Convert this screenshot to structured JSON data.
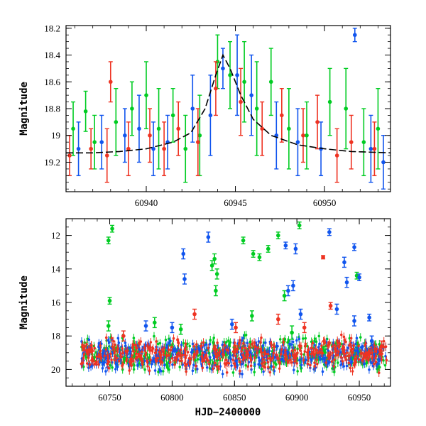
{
  "chart_data": [
    {
      "type": "scatter",
      "title": "",
      "xlabel": "",
      "ylabel": "Magnitude",
      "xlim": [
        60935.5,
        60953.7
      ],
      "ylim": [
        19.42,
        18.18
      ],
      "y_inverted": true,
      "x_ticks": [
        60940,
        60945,
        60950
      ],
      "x_tick_labels": [
        "60940",
        "60945",
        "60950"
      ],
      "y_ticks": [
        18.2,
        18.4,
        18.6,
        18.8,
        19,
        19.2
      ],
      "y_tick_labels": [
        "18.2",
        "18.4",
        "18.6",
        "18.8",
        "19",
        "19.2"
      ],
      "grid": false,
      "series": [
        {
          "color": "#00cc22",
          "marker": "circle-with-errorbar",
          "points": [
            {
              "x": 60935.9,
              "y": 18.95,
              "err": 0.2
            },
            {
              "x": 60936.6,
              "y": 18.82,
              "err": 0.15
            },
            {
              "x": 60937.1,
              "y": 19.05,
              "err": 0.2
            },
            {
              "x": 60938.3,
              "y": 18.9,
              "err": 0.25
            },
            {
              "x": 60939.2,
              "y": 18.8,
              "err": 0.2
            },
            {
              "x": 60940.0,
              "y": 18.7,
              "err": 0.25
            },
            {
              "x": 60940.7,
              "y": 18.95,
              "err": 0.3
            },
            {
              "x": 60941.5,
              "y": 18.85,
              "err": 0.2
            },
            {
              "x": 60942.2,
              "y": 19.1,
              "err": 0.25
            },
            {
              "x": 60943.0,
              "y": 19.0,
              "err": 0.3
            },
            {
              "x": 60944.0,
              "y": 18.45,
              "err": 0.2
            },
            {
              "x": 60944.7,
              "y": 18.55,
              "err": 0.25
            },
            {
              "x": 60945.5,
              "y": 18.6,
              "err": 0.3
            },
            {
              "x": 60946.2,
              "y": 18.8,
              "err": 0.35
            },
            {
              "x": 60947.0,
              "y": 18.6,
              "err": 0.25
            },
            {
              "x": 60948.0,
              "y": 18.95,
              "err": 0.3
            },
            {
              "x": 60949.0,
              "y": 19.0,
              "err": 0.25
            },
            {
              "x": 60950.3,
              "y": 18.75,
              "err": 0.25
            },
            {
              "x": 60951.2,
              "y": 18.8,
              "err": 0.3
            },
            {
              "x": 60952.2,
              "y": 19.05,
              "err": 0.25
            },
            {
              "x": 60953.0,
              "y": 18.95,
              "err": 0.3
            }
          ]
        },
        {
          "color": "#1155ee",
          "marker": "circle-with-errorbar",
          "points": [
            {
              "x": 60936.2,
              "y": 19.1,
              "err": 0.2
            },
            {
              "x": 60937.5,
              "y": 19.05,
              "err": 0.2
            },
            {
              "x": 60938.8,
              "y": 19.0,
              "err": 0.2
            },
            {
              "x": 60939.6,
              "y": 18.95,
              "err": 0.25
            },
            {
              "x": 60940.4,
              "y": 19.1,
              "err": 0.2
            },
            {
              "x": 60941.2,
              "y": 19.05,
              "err": 0.2
            },
            {
              "x": 60942.6,
              "y": 18.8,
              "err": 0.25
            },
            {
              "x": 60943.6,
              "y": 18.85,
              "err": 0.3
            },
            {
              "x": 60944.3,
              "y": 18.5,
              "err": 0.15
            },
            {
              "x": 60945.1,
              "y": 18.55,
              "err": 0.3
            },
            {
              "x": 60945.9,
              "y": 18.7,
              "err": 0.3
            },
            {
              "x": 60947.3,
              "y": 19.0,
              "err": 0.25
            },
            {
              "x": 60948.5,
              "y": 19.05,
              "err": 0.25
            },
            {
              "x": 60949.8,
              "y": 19.1,
              "err": 0.2
            },
            {
              "x": 60951.7,
              "y": 18.25,
              "err": 0.05
            },
            {
              "x": 60952.6,
              "y": 19.1,
              "err": 0.25
            },
            {
              "x": 60953.3,
              "y": 19.2,
              "err": 0.2
            }
          ]
        },
        {
          "color": "#ee3322",
          "marker": "circle-with-errorbar",
          "points": [
            {
              "x": 60935.7,
              "y": 19.15,
              "err": 0.15
            },
            {
              "x": 60936.9,
              "y": 19.1,
              "err": 0.15
            },
            {
              "x": 60937.8,
              "y": 19.15,
              "err": 0.2
            },
            {
              "x": 60938.0,
              "y": 18.6,
              "err": 0.15
            },
            {
              "x": 60939.0,
              "y": 19.1,
              "err": 0.2
            },
            {
              "x": 60940.2,
              "y": 19.0,
              "err": 0.2
            },
            {
              "x": 60941.0,
              "y": 19.1,
              "err": 0.2
            },
            {
              "x": 60941.8,
              "y": 18.95,
              "err": 0.2
            },
            {
              "x": 60942.9,
              "y": 19.05,
              "err": 0.25
            },
            {
              "x": 60943.9,
              "y": 18.65,
              "err": 0.2
            },
            {
              "x": 60945.3,
              "y": 18.75,
              "err": 0.25
            },
            {
              "x": 60946.5,
              "y": 18.95,
              "err": 0.2
            },
            {
              "x": 60947.6,
              "y": 18.85,
              "err": 0.2
            },
            {
              "x": 60948.8,
              "y": 19.0,
              "err": 0.2
            },
            {
              "x": 60949.6,
              "y": 18.9,
              "err": 0.2
            },
            {
              "x": 60950.7,
              "y": 19.15,
              "err": 0.2
            },
            {
              "x": 60951.5,
              "y": 19.05,
              "err": 0.2
            },
            {
              "x": 60952.8,
              "y": 19.1,
              "err": 0.2
            }
          ]
        },
        {
          "color": "#000000",
          "style": "dashed-line",
          "points": [
            {
              "x": 60935.5,
              "y": 19.13
            },
            {
              "x": 60937.0,
              "y": 19.13
            },
            {
              "x": 60938.5,
              "y": 19.12
            },
            {
              "x": 60940.0,
              "y": 19.1
            },
            {
              "x": 60941.5,
              "y": 19.05
            },
            {
              "x": 60942.5,
              "y": 18.98
            },
            {
              "x": 60943.3,
              "y": 18.8
            },
            {
              "x": 60943.9,
              "y": 18.55
            },
            {
              "x": 60944.3,
              "y": 18.4
            },
            {
              "x": 60944.7,
              "y": 18.5
            },
            {
              "x": 60945.3,
              "y": 18.7
            },
            {
              "x": 60946.0,
              "y": 18.88
            },
            {
              "x": 60947.0,
              "y": 19.0
            },
            {
              "x": 60948.5,
              "y": 19.07
            },
            {
              "x": 60950.0,
              "y": 19.1
            },
            {
              "x": 60951.5,
              "y": 19.12
            },
            {
              "x": 60953.7,
              "y": 19.13
            }
          ]
        }
      ]
    },
    {
      "type": "scatter",
      "title": "",
      "xlabel": "HJD−2400000",
      "ylabel": "Magnitude",
      "xlim": [
        60715,
        60975
      ],
      "ylim": [
        21.0,
        11.0
      ],
      "y_inverted": true,
      "x_ticks": [
        60750,
        60800,
        60850,
        60900,
        60950
      ],
      "x_tick_labels": [
        "60750",
        "60800",
        "60850",
        "60900",
        "60950"
      ],
      "y_ticks": [
        12,
        14,
        16,
        18,
        20
      ],
      "y_tick_labels": [
        "12",
        "14",
        "16",
        "18",
        "20"
      ],
      "grid": false,
      "baseline_band": {
        "x_start": 60727,
        "x_end": 60972,
        "center": 19.1,
        "spread": 0.9
      },
      "series": [
        {
          "color": "#00cc22",
          "marker": "circle-with-errorbar",
          "points": [
            {
              "x": 60749,
              "y": 12.3,
              "err": 0.2
            },
            {
              "x": 60752,
              "y": 11.6,
              "err": 0.2
            },
            {
              "x": 60750,
              "y": 15.9,
              "err": 0.2
            },
            {
              "x": 60749,
              "y": 17.4,
              "err": 0.3
            },
            {
              "x": 60786,
              "y": 17.2,
              "err": 0.3
            },
            {
              "x": 60807,
              "y": 17.6,
              "err": 0.3
            },
            {
              "x": 60832,
              "y": 13.8,
              "err": 0.3
            },
            {
              "x": 60834,
              "y": 13.4,
              "err": 0.3
            },
            {
              "x": 60836,
              "y": 14.3,
              "err": 0.3
            },
            {
              "x": 60835,
              "y": 15.3,
              "err": 0.3
            },
            {
              "x": 60857,
              "y": 12.3,
              "err": 0.2
            },
            {
              "x": 60865,
              "y": 13.1,
              "err": 0.2
            },
            {
              "x": 60870,
              "y": 13.3,
              "err": 0.2
            },
            {
              "x": 60877,
              "y": 12.8,
              "err": 0.2
            },
            {
              "x": 60885,
              "y": 12.0,
              "err": 0.2
            },
            {
              "x": 60902,
              "y": 11.4,
              "err": 0.2
            },
            {
              "x": 60890,
              "y": 15.6,
              "err": 0.3
            },
            {
              "x": 60948,
              "y": 14.4,
              "err": 0.2
            },
            {
              "x": 60864,
              "y": 16.8,
              "err": 0.3
            },
            {
              "x": 60896,
              "y": 17.8,
              "err": 0.4
            }
          ]
        },
        {
          "color": "#1155ee",
          "marker": "circle-with-errorbar",
          "points": [
            {
              "x": 60829,
              "y": 12.1,
              "err": 0.3
            },
            {
              "x": 60809,
              "y": 13.1,
              "err": 0.3
            },
            {
              "x": 60810,
              "y": 14.6,
              "err": 0.3
            },
            {
              "x": 60891,
              "y": 12.6,
              "err": 0.2
            },
            {
              "x": 60899,
              "y": 12.8,
              "err": 0.3
            },
            {
              "x": 60897,
              "y": 15.0,
              "err": 0.3
            },
            {
              "x": 60893,
              "y": 15.3,
              "err": 0.3
            },
            {
              "x": 60926,
              "y": 11.8,
              "err": 0.2
            },
            {
              "x": 60938,
              "y": 13.6,
              "err": 0.3
            },
            {
              "x": 60940,
              "y": 14.8,
              "err": 0.3
            },
            {
              "x": 60946,
              "y": 12.7,
              "err": 0.2
            },
            {
              "x": 60950,
              "y": 14.5,
              "err": 0.2
            },
            {
              "x": 60958,
              "y": 16.9,
              "err": 0.2
            },
            {
              "x": 60946,
              "y": 17.1,
              "err": 0.3
            },
            {
              "x": 60932,
              "y": 16.4,
              "err": 0.3
            },
            {
              "x": 60960,
              "y": 18.3,
              "err": 0.3
            },
            {
              "x": 60779,
              "y": 17.4,
              "err": 0.3
            },
            {
              "x": 60800,
              "y": 17.5,
              "err": 0.3
            },
            {
              "x": 60848,
              "y": 17.3,
              "err": 0.3
            },
            {
              "x": 60903,
              "y": 16.7,
              "err": 0.3
            }
          ]
        },
        {
          "color": "#ee3322",
          "marker": "circle-with-errorbar",
          "points": [
            {
              "x": 60921,
              "y": 13.3,
              "err": 0.1
            },
            {
              "x": 60927,
              "y": 16.2,
              "err": 0.2
            },
            {
              "x": 60818,
              "y": 16.7,
              "err": 0.3
            },
            {
              "x": 60851,
              "y": 17.5,
              "err": 0.3
            },
            {
              "x": 60885,
              "y": 17.0,
              "err": 0.3
            },
            {
              "x": 60906,
              "y": 17.5,
              "err": 0.3
            },
            {
              "x": 60761,
              "y": 18.0,
              "err": 0.3
            },
            {
              "x": 60968,
              "y": 18.6,
              "err": 0.3
            }
          ]
        }
      ]
    }
  ]
}
